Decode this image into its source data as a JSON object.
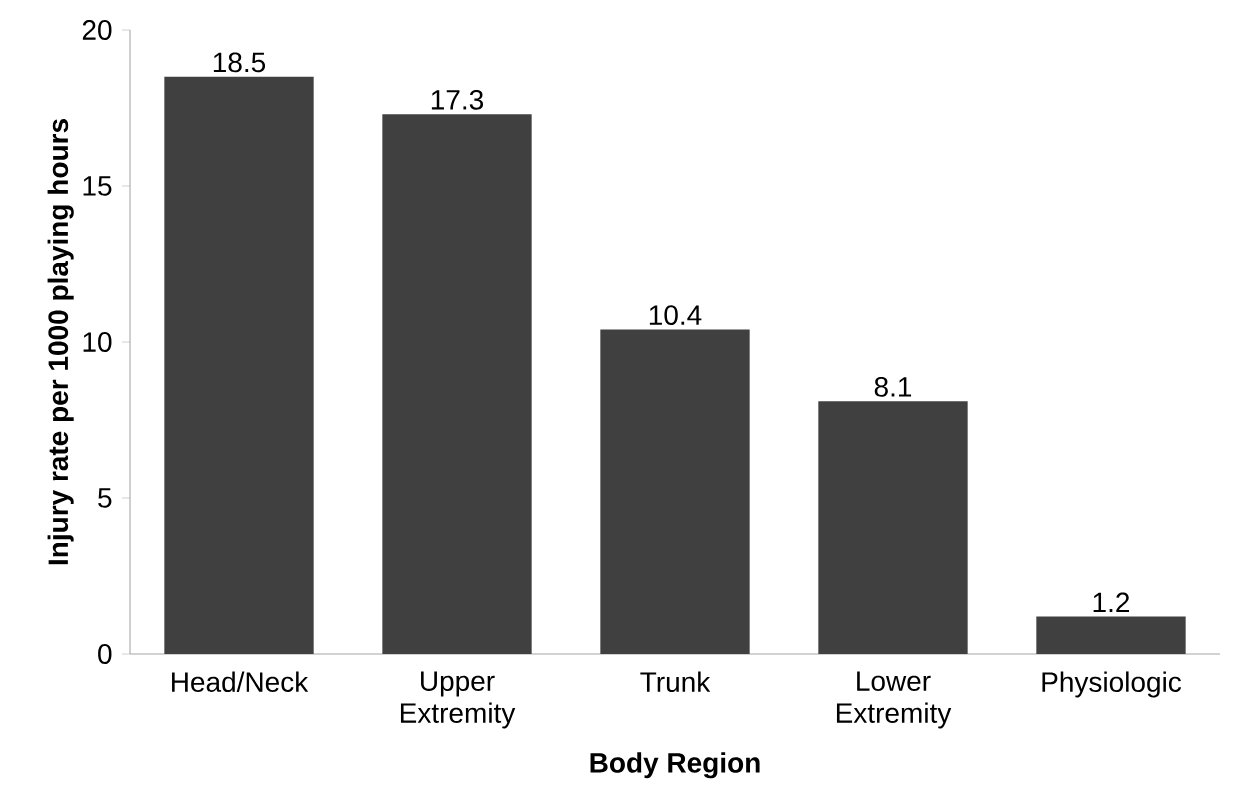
{
  "chart_data": {
    "type": "bar",
    "xlabel": "Body Region",
    "ylabel": "Injury rate per 1000 playing hours",
    "categories": [
      "Head/Neck",
      "Upper Extremity",
      "Trunk",
      "Lower Extremity",
      "Physiologic"
    ],
    "values": [
      18.5,
      17.3,
      10.4,
      8.1,
      1.2
    ],
    "color": "#404040",
    "ylim": [
      0,
      20
    ],
    "yticks": [
      0,
      5,
      10,
      15,
      20
    ],
    "data_labels": true,
    "grid": false
  }
}
